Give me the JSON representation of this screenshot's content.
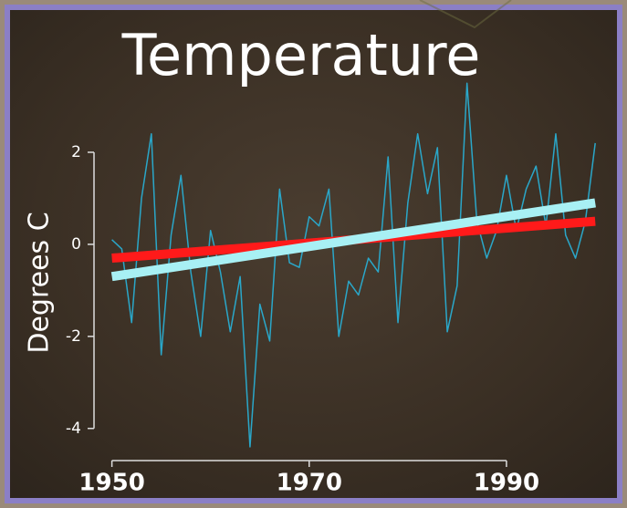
{
  "chart_data": {
    "type": "line",
    "title": "Temperature",
    "y_label": "Degrees C",
    "x": [
      1950,
      1951,
      1952,
      1953,
      1954,
      1955,
      1956,
      1957,
      1958,
      1959,
      1960,
      1961,
      1962,
      1963,
      1964,
      1965,
      1966,
      1967,
      1968,
      1969,
      1970,
      1971,
      1972,
      1973,
      1974,
      1975,
      1976,
      1977,
      1978,
      1979,
      1980,
      1981,
      1982,
      1983,
      1984,
      1985,
      1986,
      1987,
      1988,
      1989,
      1990,
      1991,
      1992,
      1993,
      1994,
      1995,
      1996,
      1997,
      1998,
      1999
    ],
    "series": [
      {
        "color": "#2aa7c9",
        "values": [
          0.1,
          -0.1,
          -1.7,
          1.0,
          2.4,
          -2.4,
          0.2,
          1.5,
          -0.6,
          -2.0,
          0.3,
          -0.6,
          -1.9,
          -0.7,
          -4.4,
          -1.3,
          -2.1,
          1.2,
          -0.4,
          -0.5,
          0.6,
          0.4,
          1.2,
          -2.0,
          -0.8,
          -1.1,
          -0.3,
          -0.6,
          1.9,
          -1.7,
          0.9,
          2.4,
          1.1,
          2.1,
          -1.9,
          -0.9,
          3.5,
          0.5,
          -0.3,
          0.3,
          1.5,
          0.3,
          1.2,
          1.7,
          0.4,
          2.4,
          0.2,
          -0.3,
          0.5,
          2.2
        ]
      }
    ],
    "trend_lines": [
      {
        "color": "#ff1a1a",
        "x": [
          1950,
          1999
        ],
        "values": [
          -0.3,
          0.5
        ]
      },
      {
        "color": "#a8f0f4",
        "x": [
          1950,
          1999
        ],
        "values": [
          -0.7,
          0.9
        ]
      }
    ],
    "xlim": [
      1948,
      2000
    ],
    "xticks": [
      1950,
      1970,
      1990
    ],
    "ylim": [
      -4.5,
      3
    ],
    "yticks": [
      2,
      0,
      -2,
      -4
    ]
  }
}
